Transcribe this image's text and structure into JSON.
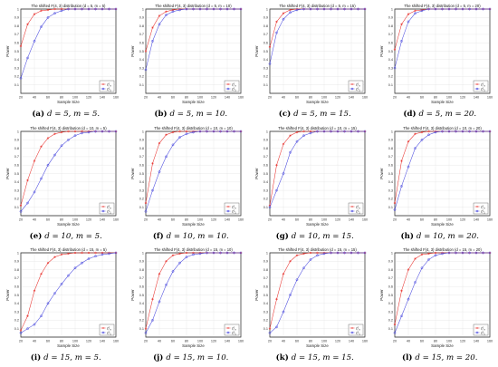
{
  "colors": {
    "red": "#e8322e",
    "blue": "#4a4adf",
    "axis": "#333333",
    "grid": "#e3e3e3"
  },
  "chart_data": [
    {
      "type": "line",
      "title": "The shifted F(4, 3) distribution (d = 5, m = 5)",
      "caption": "(a) d = 5, m = 5.",
      "xlabel": "Sample Size",
      "ylabel": "Power",
      "xlim": [
        20,
        160
      ],
      "ylim": [
        0,
        1
      ],
      "x": [
        20,
        30,
        40,
        50,
        60,
        70,
        80,
        90,
        100,
        110,
        120,
        130,
        140,
        150,
        160
      ],
      "xticks": [
        20,
        40,
        60,
        80,
        100,
        120,
        140,
        160
      ],
      "yticks": [
        0.1,
        0.2,
        0.3,
        0.4,
        0.5,
        0.6,
        0.7,
        0.8,
        0.9,
        1
      ],
      "legend_position": "bottom-right",
      "series": [
        {
          "name": "ζ²_n",
          "color": "#e8322e",
          "marker": "star",
          "values": [
            0.56,
            0.82,
            0.94,
            0.98,
            0.99,
            1,
            1,
            1,
            1,
            1,
            1,
            1,
            1,
            1,
            1
          ]
        },
        {
          "name": "ζ²_1",
          "color": "#4a4adf",
          "marker": "circle",
          "values": [
            0.18,
            0.42,
            0.62,
            0.79,
            0.9,
            0.95,
            0.98,
            1,
            1,
            1,
            1,
            1,
            1,
            1,
            1
          ]
        }
      ]
    },
    {
      "type": "line",
      "title": "The shifted F(4, 3) distribution (d = 5, m = 10)",
      "caption": "(b) d = 5, m = 10.",
      "xlabel": "Sample Size",
      "ylabel": "Power",
      "xlim": [
        20,
        160
      ],
      "ylim": [
        0,
        1
      ],
      "x": [
        20,
        30,
        40,
        50,
        60,
        70,
        80,
        90,
        100,
        110,
        120,
        130,
        140,
        150,
        160
      ],
      "xticks": [
        20,
        40,
        60,
        80,
        100,
        120,
        140,
        160
      ],
      "yticks": [
        0.1,
        0.2,
        0.3,
        0.4,
        0.5,
        0.6,
        0.7,
        0.8,
        0.9,
        1
      ],
      "legend_position": "bottom-right",
      "series": [
        {
          "name": "ζ²_n",
          "color": "#e8322e",
          "marker": "star",
          "values": [
            0.5,
            0.78,
            0.92,
            0.97,
            0.99,
            1,
            1,
            1,
            1,
            1,
            1,
            1,
            1,
            1,
            1
          ]
        },
        {
          "name": "ζ²_1",
          "color": "#4a4adf",
          "marker": "circle",
          "values": [
            0.28,
            0.62,
            0.82,
            0.93,
            0.97,
            0.99,
            1,
            1,
            1,
            1,
            1,
            1,
            1,
            1,
            1
          ]
        }
      ]
    },
    {
      "type": "line",
      "title": "The shifted F(4, 3) distribution (d = 5, m = 15)",
      "caption": "(c) d = 5, m = 15.",
      "xlabel": "Sample Size",
      "ylabel": "Power",
      "xlim": [
        20,
        160
      ],
      "ylim": [
        0,
        1
      ],
      "x": [
        20,
        30,
        40,
        50,
        60,
        70,
        80,
        90,
        100,
        110,
        120,
        130,
        140,
        150,
        160
      ],
      "xticks": [
        20,
        40,
        60,
        80,
        100,
        120,
        140,
        160
      ],
      "yticks": [
        0.1,
        0.2,
        0.3,
        0.4,
        0.5,
        0.6,
        0.7,
        0.8,
        0.9,
        1
      ],
      "legend_position": "bottom-right",
      "series": [
        {
          "name": "ζ²_n",
          "color": "#e8322e",
          "marker": "star",
          "values": [
            0.55,
            0.85,
            0.95,
            0.99,
            1,
            1,
            1,
            1,
            1,
            1,
            1,
            1,
            1,
            1,
            1
          ]
        },
        {
          "name": "ζ²_1",
          "color": "#4a4adf",
          "marker": "circle",
          "values": [
            0.35,
            0.72,
            0.88,
            0.96,
            0.99,
            1,
            1,
            1,
            1,
            1,
            1,
            1,
            1,
            1,
            1
          ]
        }
      ]
    },
    {
      "type": "line",
      "title": "The shifted F(4, 3) distribution (d = 5, m = 20)",
      "caption": "(d) d = 5, m = 20.",
      "xlabel": "Sample Size",
      "ylabel": "Power",
      "xlim": [
        20,
        160
      ],
      "ylim": [
        0,
        1
      ],
      "x": [
        20,
        30,
        40,
        50,
        60,
        70,
        80,
        90,
        100,
        110,
        120,
        130,
        140,
        150,
        160
      ],
      "xticks": [
        20,
        40,
        60,
        80,
        100,
        120,
        140,
        160
      ],
      "yticks": [
        0.1,
        0.2,
        0.3,
        0.4,
        0.5,
        0.6,
        0.7,
        0.8,
        0.9,
        1
      ],
      "legend_position": "bottom-right",
      "series": [
        {
          "name": "ζ²_n",
          "color": "#e8322e",
          "marker": "star",
          "values": [
            0.52,
            0.82,
            0.94,
            0.98,
            0.99,
            1,
            1,
            1,
            1,
            1,
            1,
            1,
            1,
            1,
            1
          ]
        },
        {
          "name": "ζ²_1",
          "color": "#4a4adf",
          "marker": "circle",
          "values": [
            0.3,
            0.62,
            0.85,
            0.95,
            0.98,
            1,
            1,
            1,
            1,
            1,
            1,
            1,
            1,
            1,
            1
          ]
        }
      ]
    },
    {
      "type": "line",
      "title": "The shifted F(4, 3) distribution (d = 10, m = 5)",
      "caption": "(e) d = 10, m = 5.",
      "xlabel": "Sample Size",
      "ylabel": "Power",
      "xlim": [
        20,
        160
      ],
      "ylim": [
        0,
        1
      ],
      "x": [
        20,
        30,
        40,
        50,
        60,
        70,
        80,
        90,
        100,
        110,
        120,
        130,
        140,
        150,
        160
      ],
      "xticks": [
        20,
        40,
        60,
        80,
        100,
        120,
        140,
        160
      ],
      "yticks": [
        0.1,
        0.2,
        0.3,
        0.4,
        0.5,
        0.6,
        0.7,
        0.8,
        0.9,
        1
      ],
      "legend_position": "bottom-right",
      "series": [
        {
          "name": "ζ²_n",
          "color": "#e8322e",
          "marker": "star",
          "values": [
            0.12,
            0.42,
            0.65,
            0.82,
            0.92,
            0.97,
            0.99,
            1,
            1,
            1,
            1,
            1,
            1,
            1,
            1
          ]
        },
        {
          "name": "ζ²_1",
          "color": "#4a4adf",
          "marker": "circle",
          "values": [
            0.05,
            0.15,
            0.28,
            0.44,
            0.6,
            0.72,
            0.83,
            0.9,
            0.95,
            0.98,
            0.99,
            1,
            1,
            1,
            1
          ]
        }
      ]
    },
    {
      "type": "line",
      "title": "The shifted F(4, 3) distribution (d = 10, m = 10)",
      "caption": "(f) d = 10, m = 10.",
      "xlabel": "Sample Size",
      "ylabel": "Power",
      "xlim": [
        20,
        160
      ],
      "ylim": [
        0,
        1
      ],
      "x": [
        20,
        30,
        40,
        50,
        60,
        70,
        80,
        90,
        100,
        110,
        120,
        130,
        140,
        150,
        160
      ],
      "xticks": [
        20,
        40,
        60,
        80,
        100,
        120,
        140,
        160
      ],
      "yticks": [
        0.1,
        0.2,
        0.3,
        0.4,
        0.5,
        0.6,
        0.7,
        0.8,
        0.9,
        1
      ],
      "legend_position": "bottom-right",
      "series": [
        {
          "name": "ζ²_n",
          "color": "#e8322e",
          "marker": "star",
          "values": [
            0.15,
            0.62,
            0.86,
            0.96,
            0.99,
            1,
            1,
            1,
            1,
            1,
            1,
            1,
            1,
            1,
            1
          ]
        },
        {
          "name": "ζ²_1",
          "color": "#4a4adf",
          "marker": "circle",
          "values": [
            0.05,
            0.3,
            0.52,
            0.7,
            0.84,
            0.93,
            0.97,
            0.99,
            1,
            1,
            1,
            1,
            1,
            1,
            1
          ]
        }
      ]
    },
    {
      "type": "line",
      "title": "The shifted F(4, 3) distribution (d = 10, m = 15)",
      "caption": "(g) d = 10, m = 15.",
      "xlabel": "Sample Size",
      "ylabel": "Power",
      "xlim": [
        20,
        160
      ],
      "ylim": [
        0,
        1
      ],
      "x": [
        20,
        30,
        40,
        50,
        60,
        70,
        80,
        90,
        100,
        110,
        120,
        130,
        140,
        150,
        160
      ],
      "xticks": [
        20,
        40,
        60,
        80,
        100,
        120,
        140,
        160
      ],
      "yticks": [
        0.1,
        0.2,
        0.3,
        0.4,
        0.5,
        0.6,
        0.7,
        0.8,
        0.9,
        1
      ],
      "legend_position": "bottom-right",
      "series": [
        {
          "name": "ζ²_n",
          "color": "#e8322e",
          "marker": "star",
          "values": [
            0.12,
            0.6,
            0.85,
            0.95,
            0.99,
            1,
            1,
            1,
            1,
            1,
            1,
            1,
            1,
            1,
            1
          ]
        },
        {
          "name": "ζ²_1",
          "color": "#4a4adf",
          "marker": "circle",
          "values": [
            0.1,
            0.3,
            0.5,
            0.75,
            0.88,
            0.95,
            0.98,
            1,
            1,
            1,
            1,
            1,
            1,
            1,
            1
          ]
        }
      ]
    },
    {
      "type": "line",
      "title": "The shifted F(4, 3) distribution (d = 10, m = 20)",
      "caption": "(h) d = 10, m = 20.",
      "xlabel": "Sample Size",
      "ylabel": "Power",
      "xlim": [
        20,
        160
      ],
      "ylim": [
        0,
        1
      ],
      "x": [
        20,
        30,
        40,
        50,
        60,
        70,
        80,
        90,
        100,
        110,
        120,
        130,
        140,
        150,
        160
      ],
      "xticks": [
        20,
        40,
        60,
        80,
        100,
        120,
        140,
        160
      ],
      "yticks": [
        0.1,
        0.2,
        0.3,
        0.4,
        0.5,
        0.6,
        0.7,
        0.8,
        0.9,
        1
      ],
      "legend_position": "bottom-right",
      "series": [
        {
          "name": "ζ²_n",
          "color": "#e8322e",
          "marker": "star",
          "values": [
            0.15,
            0.65,
            0.88,
            0.97,
            0.99,
            1,
            1,
            1,
            1,
            1,
            1,
            1,
            1,
            1,
            1
          ]
        },
        {
          "name": "ζ²_1",
          "color": "#4a4adf",
          "marker": "circle",
          "values": [
            0.07,
            0.35,
            0.58,
            0.8,
            0.9,
            0.96,
            0.99,
            1,
            1,
            1,
            1,
            1,
            1,
            1,
            1
          ]
        }
      ]
    },
    {
      "type": "line",
      "title": "The shifted F(4, 3) distribution (d = 15, m = 5)",
      "caption": "(i) d = 15, m = 5.",
      "xlabel": "Sample Size",
      "ylabel": "Power",
      "xlim": [
        20,
        160
      ],
      "ylim": [
        0,
        1
      ],
      "x": [
        20,
        30,
        40,
        50,
        60,
        70,
        80,
        90,
        100,
        110,
        120,
        130,
        140,
        150,
        160
      ],
      "xticks": [
        20,
        40,
        60,
        80,
        100,
        120,
        140,
        160
      ],
      "yticks": [
        0.1,
        0.2,
        0.3,
        0.4,
        0.5,
        0.6,
        0.7,
        0.8,
        0.9,
        1
      ],
      "legend_position": "bottom-right",
      "series": [
        {
          "name": "ζ²_n",
          "color": "#e8322e",
          "marker": "star",
          "values": [
            0.08,
            0.25,
            0.55,
            0.75,
            0.88,
            0.95,
            0.98,
            0.99,
            1,
            1,
            1,
            1,
            1,
            1,
            1
          ]
        },
        {
          "name": "ζ²_1",
          "color": "#4a4adf",
          "marker": "circle",
          "values": [
            0.05,
            0.1,
            0.15,
            0.25,
            0.4,
            0.52,
            0.63,
            0.73,
            0.82,
            0.88,
            0.93,
            0.96,
            0.98,
            0.99,
            1
          ]
        }
      ]
    },
    {
      "type": "line",
      "title": "The shifted F(4, 3) distribution (d = 15, m = 10)",
      "caption": "(j) d = 15, m = 10.",
      "xlabel": "Sample Size",
      "ylabel": "Power",
      "xlim": [
        20,
        160
      ],
      "ylim": [
        0,
        1
      ],
      "x": [
        20,
        30,
        40,
        50,
        60,
        70,
        80,
        90,
        100,
        110,
        120,
        130,
        140,
        150,
        160
      ],
      "xticks": [
        20,
        40,
        60,
        80,
        100,
        120,
        140,
        160
      ],
      "yticks": [
        0.1,
        0.2,
        0.3,
        0.4,
        0.5,
        0.6,
        0.7,
        0.8,
        0.9,
        1
      ],
      "legend_position": "bottom-right",
      "series": [
        {
          "name": "ζ²_n",
          "color": "#e8322e",
          "marker": "star",
          "values": [
            0.1,
            0.45,
            0.75,
            0.9,
            0.97,
            0.99,
            1,
            1,
            1,
            1,
            1,
            1,
            1,
            1,
            1
          ]
        },
        {
          "name": "ζ²_1",
          "color": "#4a4adf",
          "marker": "circle",
          "values": [
            0.05,
            0.2,
            0.42,
            0.62,
            0.78,
            0.88,
            0.95,
            0.98,
            0.99,
            1,
            1,
            1,
            1,
            1,
            1
          ]
        }
      ]
    },
    {
      "type": "line",
      "title": "The shifted F(4, 3) distribution (d = 15, m = 15)",
      "caption": "(k) d = 15, m = 15.",
      "xlabel": "Sample Size",
      "ylabel": "Power",
      "xlim": [
        20,
        160
      ],
      "ylim": [
        0,
        1
      ],
      "x": [
        20,
        30,
        40,
        50,
        60,
        70,
        80,
        90,
        100,
        110,
        120,
        130,
        140,
        150,
        160
      ],
      "xticks": [
        20,
        40,
        60,
        80,
        100,
        120,
        140,
        160
      ],
      "yticks": [
        0.1,
        0.2,
        0.3,
        0.4,
        0.5,
        0.6,
        0.7,
        0.8,
        0.9,
        1
      ],
      "legend_position": "bottom-right",
      "series": [
        {
          "name": "ζ²_n",
          "color": "#e8322e",
          "marker": "star",
          "values": [
            0.1,
            0.45,
            0.75,
            0.9,
            0.97,
            0.99,
            1,
            1,
            1,
            1,
            1,
            1,
            1,
            1,
            1
          ]
        },
        {
          "name": "ζ²_1",
          "color": "#4a4adf",
          "marker": "circle",
          "values": [
            0.05,
            0.12,
            0.3,
            0.5,
            0.68,
            0.82,
            0.92,
            0.97,
            0.99,
            1,
            1,
            1,
            1,
            1,
            1
          ]
        }
      ]
    },
    {
      "type": "line",
      "title": "The shifted F(4, 3) distribution (d = 15, m = 20)",
      "caption": "(l) d = 15, m = 20.",
      "xlabel": "Sample Size",
      "ylabel": "Power",
      "xlim": [
        20,
        160
      ],
      "ylim": [
        0,
        1
      ],
      "x": [
        20,
        30,
        40,
        50,
        60,
        70,
        80,
        90,
        100,
        110,
        120,
        130,
        140,
        150,
        160
      ],
      "xticks": [
        20,
        40,
        60,
        80,
        100,
        120,
        140,
        160
      ],
      "yticks": [
        0.1,
        0.2,
        0.3,
        0.4,
        0.5,
        0.6,
        0.7,
        0.8,
        0.9,
        1
      ],
      "legend_position": "bottom-right",
      "series": [
        {
          "name": "ζ²_n",
          "color": "#e8322e",
          "marker": "star",
          "values": [
            0.15,
            0.55,
            0.8,
            0.93,
            0.98,
            0.99,
            1,
            1,
            1,
            1,
            1,
            1,
            1,
            1,
            1
          ]
        },
        {
          "name": "ζ²_1",
          "color": "#4a4adf",
          "marker": "circle",
          "values": [
            0.05,
            0.25,
            0.45,
            0.65,
            0.82,
            0.92,
            0.97,
            0.99,
            1,
            1,
            1,
            1,
            1,
            1,
            1
          ]
        }
      ]
    }
  ]
}
